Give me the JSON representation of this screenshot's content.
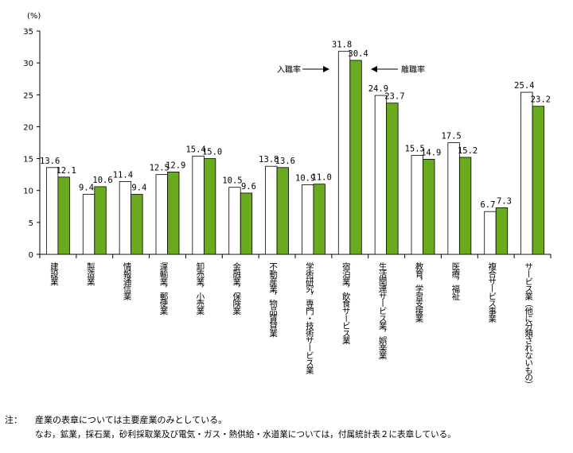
{
  "chart_data": {
    "type": "bar",
    "ylabel": "(%)",
    "ylim": [
      0,
      35
    ],
    "yticks": [
      0,
      5,
      10,
      15,
      20,
      25,
      30,
      35
    ],
    "categories": [
      "建設業",
      "製造業",
      "情報通信業",
      "運輸業，郵便業",
      "卸売業，小売業",
      "金融業，保険業",
      "不動産業，物品賃貸業",
      "学術研究，専門・技術サービス業",
      "宿泊業，飲食サービス業",
      "生活関連サービス業，娯楽業",
      "教育，学習支援業",
      "医療，福祉",
      "複合サービス事業",
      "サービス業（他に分類されないもの）"
    ],
    "series": [
      {
        "name": "入職率",
        "color": "#ffffff",
        "values": [
          13.6,
          9.4,
          11.4,
          12.5,
          15.4,
          10.5,
          13.8,
          10.9,
          31.8,
          24.9,
          15.5,
          17.5,
          6.7,
          25.4
        ]
      },
      {
        "name": "離職率",
        "color": "#6aaa1e",
        "values": [
          12.1,
          10.6,
          9.4,
          12.9,
          15.0,
          9.6,
          13.6,
          11.0,
          30.4,
          23.7,
          14.9,
          15.2,
          7.3,
          23.2
        ]
      }
    ],
    "value_labels": [
      [
        "13.6",
        "9.4",
        "11.4",
        "12.5",
        "15.4",
        "10.5",
        "13.8",
        "10.9",
        "31.8",
        "24.9",
        "15.5",
        "17.5",
        "6.7",
        "25.4"
      ],
      [
        "12.1",
        "10.6",
        "9.4",
        "12.9",
        "15.0",
        "9.6",
        "13.6",
        "11.0",
        "30.4",
        "23.7",
        "14.9",
        "15.2",
        "7.3",
        "23.2"
      ]
    ],
    "annotations": {
      "entry": "入職率",
      "exit": "離職率"
    },
    "grid": false,
    "legend": "annotations with arrows at top center"
  },
  "notes": {
    "label": "注：",
    "line1": "産業の表章については主要産業のみとしている。",
    "line2": "なお，鉱業，採石業，砂利採取業及び電気・ガス・熱供給・水道業については，付属統計表２に表章している。"
  }
}
